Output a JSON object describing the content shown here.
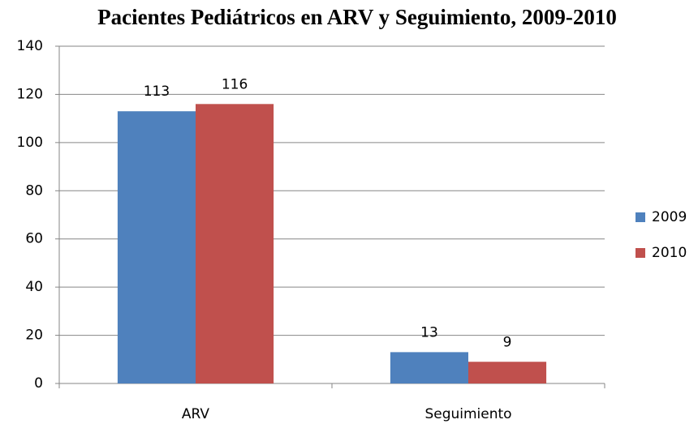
{
  "chart_data": {
    "type": "bar",
    "title": "Pacientes Pediátricos en ARV y Seguimiento, 2009-2010",
    "categories": [
      "ARV",
      "Seguimiento"
    ],
    "series": [
      {
        "name": "2009",
        "color": "#4f81bd",
        "values": [
          113,
          13
        ]
      },
      {
        "name": "2010",
        "color": "#c0504d",
        "values": [
          116,
          9
        ]
      }
    ],
    "ylim": [
      0,
      140
    ],
    "yticks": [
      0,
      20,
      40,
      60,
      80,
      100,
      120,
      140
    ],
    "grid": true,
    "legend": "right"
  }
}
